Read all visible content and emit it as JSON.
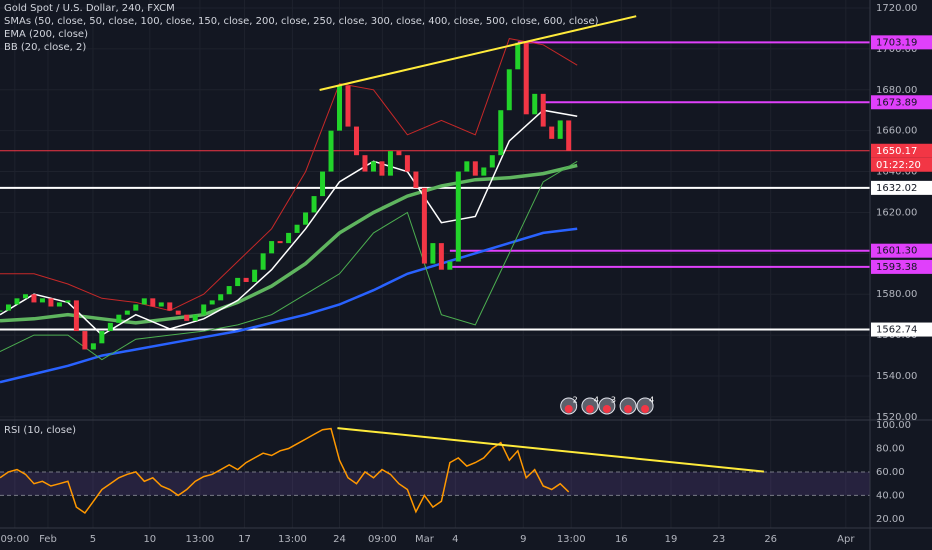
{
  "chart_data": {
    "type": "candlestick",
    "title": "Gold Spot / U.S. Dollar, 240, FXCM",
    "up_color": "#22d32a",
    "down_color": "#f23645",
    "xlim": [
      0,
      205
    ],
    "ylim": [
      1518.5,
      1723.9
    ],
    "grid": true,
    "xticks": [
      {
        "value": 3.5,
        "label": "09:00"
      },
      {
        "value": 11.3,
        "label": "Feb"
      },
      {
        "value": 21.9,
        "label": "5"
      },
      {
        "value": 35.3,
        "label": "10"
      },
      {
        "value": 47.1,
        "label": "13:00"
      },
      {
        "value": 57.6,
        "label": "17"
      },
      {
        "value": 68.9,
        "label": "13:00"
      },
      {
        "value": 80,
        "label": "24"
      },
      {
        "value": 90.1,
        "label": "09:00"
      },
      {
        "value": 100,
        "label": "Mar"
      },
      {
        "value": 107.3,
        "label": "4"
      },
      {
        "value": 123.3,
        "label": "9"
      },
      {
        "value": 134.6,
        "label": "13:00"
      },
      {
        "value": 146.4,
        "label": "16"
      },
      {
        "value": 158.1,
        "label": "19"
      },
      {
        "value": 169.4,
        "label": "23"
      },
      {
        "value": 181.6,
        "label": "26"
      },
      {
        "value": 199.3,
        "label": "Apr"
      }
    ],
    "yticks": [
      {
        "value": 1520,
        "label": "1520.00"
      },
      {
        "value": 1540,
        "label": "1540.00"
      },
      {
        "value": 1560,
        "label": "1560.00"
      },
      {
        "value": 1580,
        "label": "1580.00"
      },
      {
        "value": 1600,
        "label": "1600.00"
      },
      {
        "value": 1620,
        "label": "1620.00"
      },
      {
        "value": 1640,
        "label": "1640.00"
      },
      {
        "value": 1660,
        "label": "1660.00"
      },
      {
        "value": 1680,
        "label": "1680.00"
      },
      {
        "value": 1700,
        "label": "1700.00"
      },
      {
        "value": 1720,
        "label": "1720.00"
      }
    ],
    "x": [
      0,
      2,
      4,
      6,
      8,
      10,
      12,
      14,
      16,
      18,
      20,
      22,
      24,
      26,
      28,
      30,
      32,
      34,
      36,
      38,
      40,
      42,
      44,
      46,
      48,
      50,
      52,
      54,
      56,
      58,
      60,
      62,
      64,
      66,
      68,
      70,
      72,
      74,
      76,
      78,
      80,
      82,
      84,
      86,
      88,
      90,
      92,
      94,
      96,
      98,
      100,
      102,
      104,
      106,
      108,
      110,
      112,
      114,
      116,
      118,
      120,
      122,
      124,
      126,
      128,
      130,
      132,
      134
    ],
    "close": [
      1572,
      1575,
      1578,
      1580,
      1576,
      1578,
      1574,
      1576,
      1577,
      1562,
      1553,
      1556,
      1562,
      1566,
      1570,
      1572,
      1575,
      1578,
      1574,
      1576,
      1572,
      1570,
      1567,
      1570,
      1575,
      1577,
      1580,
      1584,
      1588,
      1586,
      1592,
      1600,
      1606,
      1605,
      1610,
      1614,
      1620,
      1628,
      1640,
      1660,
      1682,
      1662,
      1648,
      1640,
      1645,
      1638,
      1650,
      1648,
      1640,
      1632,
      1595,
      1605,
      1592,
      1596,
      1640,
      1645,
      1638,
      1642,
      1648,
      1670,
      1690,
      1703,
      1668,
      1678,
      1662,
      1656,
      1665,
      1650.17
    ],
    "overlay_x": [
      0,
      8,
      16,
      24,
      32,
      40,
      48,
      56,
      64,
      72,
      80,
      88,
      96,
      104,
      112,
      120,
      128,
      136
    ],
    "overlays": [
      {
        "name": "SMAs (50, close, 50, close, 100, close, 150, close, 200, close, 250, close, 300, close, 400, close, 500, close, 600, close)",
        "color": "#5fb55f",
        "width": 3.5,
        "values": [
          1567,
          1568,
          1570,
          1568,
          1566,
          1568,
          1570,
          1576,
          1584,
          1595,
          1610,
          1620,
          1628,
          1633,
          1636,
          1637,
          1639,
          1643
        ]
      },
      {
        "name": "EMA (200, close)",
        "color": "#2962ff",
        "width": 2.5,
        "values": [
          1537,
          1541,
          1545,
          1550,
          1553,
          1556,
          1559,
          1562,
          1566,
          1570,
          1575,
          1582,
          1590,
          1595,
          1600,
          1605,
          1610,
          1612
        ]
      },
      {
        "name": "BB (20, close, 2)",
        "color": "#ffffff",
        "width": 1.5,
        "values": [
          1570,
          1580,
          1576,
          1560,
          1570,
          1563,
          1568,
          1577,
          1592,
          1612,
          1635,
          1645,
          1640,
          1615,
          1618,
          1655,
          1670,
          1667
        ],
        "upper_color": "#c62828",
        "upper": [
          1590,
          1590,
          1585,
          1578,
          1576,
          1572,
          1580,
          1596,
          1612,
          1640,
          1683,
          1680,
          1658,
          1665,
          1658,
          1705,
          1702,
          1692
        ],
        "lower_color": "#4caf50",
        "lower": [
          1552,
          1560,
          1560,
          1548,
          1558,
          1560,
          1562,
          1565,
          1570,
          1580,
          1590,
          1610,
          1620,
          1570,
          1565,
          1600,
          1635,
          1645
        ]
      }
    ],
    "trendline": {
      "x": [
        75.3,
        149.9
      ],
      "values": [
        1679.9,
        1716
      ],
      "color": "#ffeb3b"
    },
    "levels": {
      "start": [
        122,
        128,
        0,
        0,
        106,
        106,
        0
      ],
      "values": [
        1703.19,
        1673.89,
        1650.17,
        1632.02,
        1601.3,
        1593.38,
        1562.74
      ],
      "value_labels": [
        "1703.19",
        "1673.89",
        "1650.17",
        "1632.02",
        "1601.30",
        "1593.38",
        "1562.74"
      ],
      "colors": [
        "#e040fb",
        "#e040fb",
        "#f23645",
        "#ffffff",
        "#e040fb",
        "#e040fb",
        "#ffffff"
      ]
    },
    "countdown": "01:22:20",
    "events_x": [
      134,
      139,
      143,
      148,
      152
    ],
    "events": [
      "2",
      "4",
      "3",
      "",
      "4"
    ],
    "rsi": {
      "title": "RSI (10, close)",
      "color": "#ff9800",
      "ylim": [
        12.2,
        104.3
      ],
      "yticks": [
        {
          "value": 20,
          "label": "20.00"
        },
        {
          "value": 40,
          "label": "40.00"
        },
        {
          "value": 60,
          "label": "60.00"
        },
        {
          "value": 80,
          "label": "80.00"
        },
        {
          "value": 100,
          "label": "100.00"
        }
      ],
      "band": [
        40,
        60
      ],
      "values": [
        55,
        60,
        62,
        58,
        50,
        52,
        48,
        50,
        52,
        30,
        25,
        35,
        45,
        50,
        55,
        58,
        60,
        52,
        55,
        48,
        45,
        40,
        45,
        52,
        56,
        58,
        62,
        66,
        62,
        68,
        72,
        76,
        74,
        78,
        80,
        84,
        88,
        92,
        96,
        97,
        70,
        55,
        50,
        60,
        55,
        62,
        58,
        50,
        45,
        26,
        40,
        30,
        35,
        68,
        72,
        65,
        68,
        72,
        80,
        85,
        70,
        78,
        55,
        62,
        48,
        45,
        50,
        43
      ],
      "trendline": {
        "x": [
          79.5,
          180
        ],
        "values": [
          97.4,
          60.3
        ],
        "color": "#ffeb3b"
      }
    }
  }
}
